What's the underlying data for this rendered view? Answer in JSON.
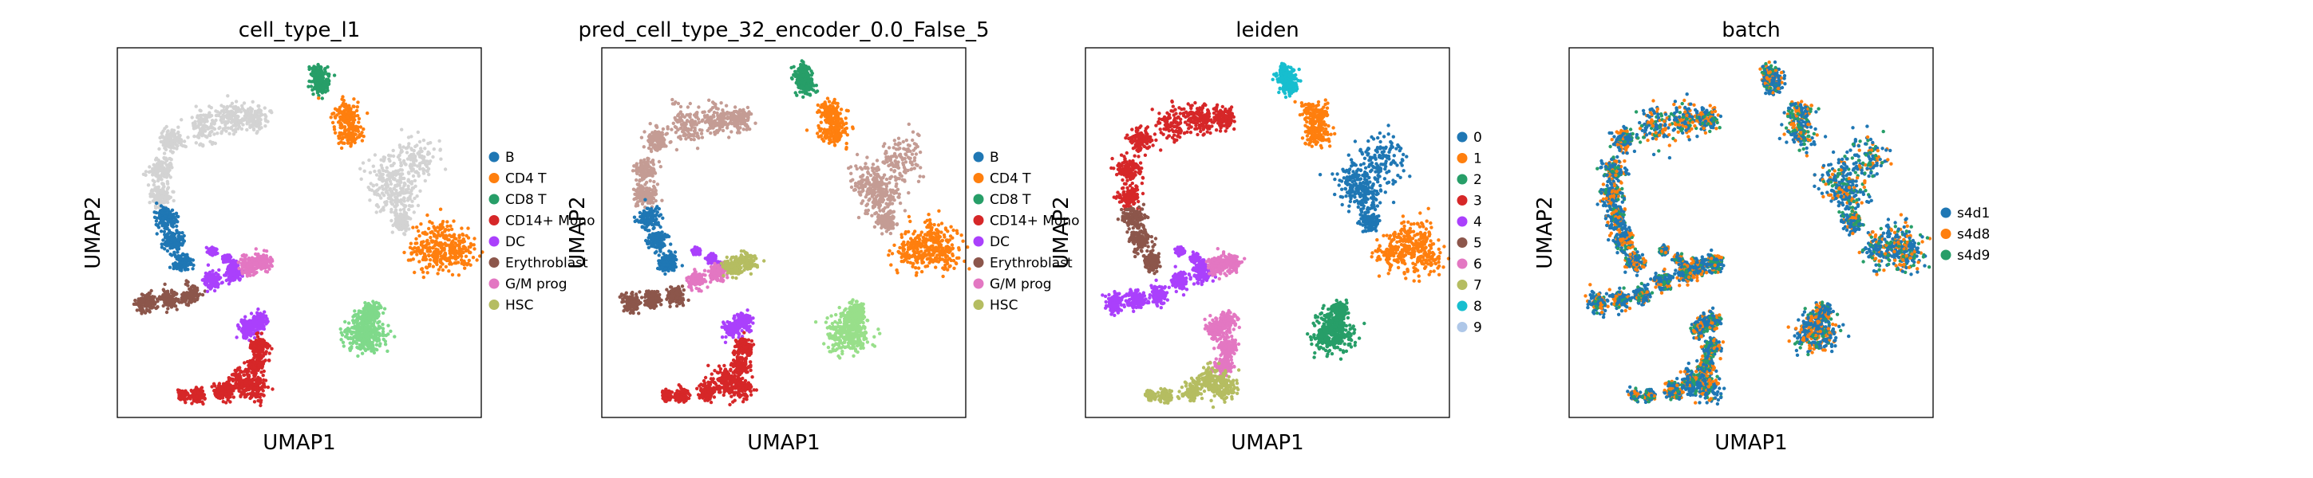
{
  "figure": {
    "type": "umap-scatter-panels"
  },
  "chart_data": [
    {
      "type": "scatter",
      "title": "cell_type_l1",
      "xlabel": "UMAP1",
      "ylabel": "UMAP2",
      "legend_position": "right",
      "legend": [
        {
          "name": "B",
          "color": "#1f77b4"
        },
        {
          "name": "CD4 T",
          "color": "#ff7f0e"
        },
        {
          "name": "CD8 T",
          "color": "#279e68"
        },
        {
          "name": "CD14+ Mono",
          "color": "#d62728"
        },
        {
          "name": "DC",
          "color": "#aa40fc"
        },
        {
          "name": "Erythroblast",
          "color": "#8c564b"
        },
        {
          "name": "G/M prog",
          "color": "#e377c2"
        },
        {
          "name": "HSC",
          "color": "#b5bd61"
        }
      ]
    },
    {
      "type": "scatter",
      "title": "pred_cell_type_32_encoder_0.0_False_5",
      "xlabel": "UMAP1",
      "ylabel": "UMAP2",
      "legend_position": "right",
      "legend": [
        {
          "name": "B",
          "color": "#1f77b4"
        },
        {
          "name": "CD4 T",
          "color": "#ff7f0e"
        },
        {
          "name": "CD8 T",
          "color": "#279e68"
        },
        {
          "name": "CD14+ Mono",
          "color": "#d62728"
        },
        {
          "name": "DC",
          "color": "#aa40fc"
        },
        {
          "name": "Erythroblast",
          "color": "#8c564b"
        },
        {
          "name": "G/M prog",
          "color": "#e377c2"
        },
        {
          "name": "HSC",
          "color": "#b5bd61"
        }
      ]
    },
    {
      "type": "scatter",
      "title": "leiden",
      "xlabel": "UMAP1",
      "ylabel": "UMAP2",
      "legend_position": "right",
      "legend": [
        {
          "name": "0",
          "color": "#1f77b4"
        },
        {
          "name": "1",
          "color": "#ff7f0e"
        },
        {
          "name": "2",
          "color": "#279e68"
        },
        {
          "name": "3",
          "color": "#d62728"
        },
        {
          "name": "4",
          "color": "#aa40fc"
        },
        {
          "name": "5",
          "color": "#8c564b"
        },
        {
          "name": "6",
          "color": "#e377c2"
        },
        {
          "name": "7",
          "color": "#b5bd61"
        },
        {
          "name": "8",
          "color": "#17becf"
        },
        {
          "name": "9",
          "color": "#aec7e8"
        }
      ]
    },
    {
      "type": "scatter",
      "title": "batch",
      "xlabel": "UMAP1",
      "ylabel": "UMAP2",
      "legend_position": "right",
      "legend": [
        {
          "name": "s4d1",
          "color": "#1f77b4"
        },
        {
          "name": "s4d8",
          "color": "#ff7f0e"
        },
        {
          "name": "s4d9",
          "color": "#279e68"
        }
      ]
    }
  ]
}
